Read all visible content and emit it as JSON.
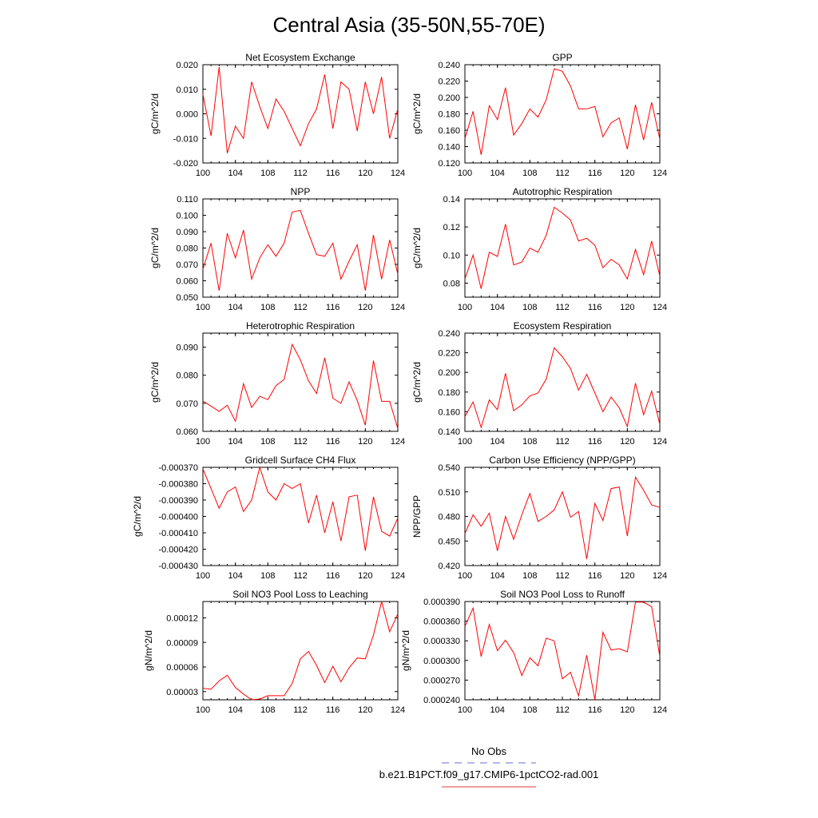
{
  "figure_title": "Central Asia (35-50N,55-70E)",
  "legend": {
    "entries": [
      {
        "label": "No Obs",
        "color": "#6b6bdc",
        "dash": true
      },
      {
        "label": "b.e21.B1PCT.f09_g17.CMIP6-1pctCO2-rad.001",
        "color": "#e03c3c",
        "dash": false
      }
    ]
  },
  "chart_data": [
    {
      "type": "line",
      "title": "Net Ecosystem Exchange",
      "ylabel": "gC/m^2/d",
      "xlim": [
        100,
        124
      ],
      "ylim": [
        -0.02,
        0.02
      ],
      "xticks": [
        "100",
        "104",
        "108",
        "112",
        "116",
        "120",
        "124"
      ],
      "yticks": [
        "-0.020",
        "-0.010",
        "0.000",
        "0.010",
        "0.020"
      ],
      "series": [
        {
          "color": "#ff0000",
          "x": [
            100,
            101,
            102,
            103,
            104,
            105,
            106,
            107,
            108,
            109,
            110,
            111,
            112,
            113,
            114,
            115,
            116,
            117,
            118,
            119,
            120,
            121,
            122,
            123,
            124
          ],
          "values": [
            0.008,
            -0.009,
            0.019,
            -0.016,
            -0.005,
            -0.01,
            0.013,
            0.003,
            -0.006,
            0.006,
            0.001,
            -0.006,
            -0.013,
            -0.004,
            0.002,
            0.016,
            -0.006,
            0.013,
            0.01,
            -0.007,
            0.013,
            0.0,
            0.015,
            -0.01,
            0.002
          ]
        }
      ]
    },
    {
      "type": "line",
      "title": "GPP",
      "ylabel": "gC/m^2/d",
      "xlim": [
        100,
        124
      ],
      "ylim": [
        0.12,
        0.24
      ],
      "xticks": [
        "100",
        "104",
        "108",
        "112",
        "116",
        "120",
        "124"
      ],
      "yticks": [
        "0.120",
        "0.140",
        "0.160",
        "0.180",
        "0.200",
        "0.220",
        "0.240"
      ],
      "series": [
        {
          "color": "#ff0000",
          "x": [
            100,
            101,
            102,
            103,
            104,
            105,
            106,
            107,
            108,
            109,
            110,
            111,
            112,
            113,
            114,
            115,
            116,
            117,
            118,
            119,
            120,
            121,
            122,
            123,
            124
          ],
          "values": [
            0.15,
            0.183,
            0.13,
            0.19,
            0.173,
            0.212,
            0.154,
            0.168,
            0.186,
            0.176,
            0.197,
            0.235,
            0.232,
            0.214,
            0.186,
            0.186,
            0.189,
            0.152,
            0.169,
            0.175,
            0.137,
            0.191,
            0.148,
            0.194,
            0.149
          ]
        }
      ]
    },
    {
      "type": "line",
      "title": "NPP",
      "ylabel": "gC/m^2/d",
      "xlim": [
        100,
        124
      ],
      "ylim": [
        0.05,
        0.11
      ],
      "xticks": [
        "100",
        "104",
        "108",
        "112",
        "116",
        "120",
        "124"
      ],
      "yticks": [
        "0.050",
        "0.060",
        "0.070",
        "0.080",
        "0.090",
        "0.100",
        "0.110"
      ],
      "series": [
        {
          "color": "#ff0000",
          "x": [
            100,
            101,
            102,
            103,
            104,
            105,
            106,
            107,
            108,
            109,
            110,
            111,
            112,
            113,
            114,
            115,
            116,
            117,
            118,
            119,
            120,
            121,
            122,
            123,
            124
          ],
          "values": [
            0.067,
            0.083,
            0.054,
            0.089,
            0.074,
            0.091,
            0.061,
            0.074,
            0.082,
            0.075,
            0.083,
            0.102,
            0.103,
            0.089,
            0.076,
            0.075,
            0.083,
            0.061,
            0.072,
            0.082,
            0.054,
            0.088,
            0.061,
            0.085,
            0.064
          ]
        }
      ]
    },
    {
      "type": "line",
      "title": "Autotrophic Respiration",
      "ylabel": "gC/m^2/d",
      "xlim": [
        100,
        124
      ],
      "ylim": [
        0.07,
        0.14
      ],
      "xticks": [
        "100",
        "104",
        "108",
        "112",
        "116",
        "120",
        "124"
      ],
      "yticks": [
        "0.08",
        "0.10",
        "0.12",
        "0.14"
      ],
      "series": [
        {
          "color": "#ff0000",
          "x": [
            100,
            101,
            102,
            103,
            104,
            105,
            106,
            107,
            108,
            109,
            110,
            111,
            112,
            113,
            114,
            115,
            116,
            117,
            118,
            119,
            120,
            121,
            122,
            123,
            124
          ],
          "values": [
            0.083,
            0.1,
            0.076,
            0.102,
            0.099,
            0.122,
            0.093,
            0.095,
            0.105,
            0.102,
            0.114,
            0.134,
            0.13,
            0.125,
            0.11,
            0.112,
            0.107,
            0.091,
            0.097,
            0.093,
            0.083,
            0.104,
            0.086,
            0.11,
            0.085
          ]
        }
      ]
    },
    {
      "type": "line",
      "title": "Heterotrophic Respiration",
      "ylabel": "gC/m^2/d",
      "xlim": [
        100,
        124
      ],
      "ylim": [
        0.06,
        0.095
      ],
      "xticks": [
        "100",
        "104",
        "108",
        "112",
        "116",
        "120",
        "124"
      ],
      "yticks": [
        "0.060",
        "0.070",
        "0.080",
        "0.090"
      ],
      "series": [
        {
          "color": "#ff0000",
          "x": [
            100,
            101,
            102,
            103,
            104,
            105,
            106,
            107,
            108,
            109,
            110,
            111,
            112,
            113,
            114,
            115,
            116,
            117,
            118,
            119,
            120,
            121,
            122,
            123,
            124
          ],
          "values": [
            0.0708,
            0.069,
            0.0671,
            0.0693,
            0.0636,
            0.077,
            0.0685,
            0.0725,
            0.0713,
            0.0763,
            0.0785,
            0.091,
            0.0855,
            0.078,
            0.0735,
            0.0862,
            0.0718,
            0.07,
            0.0776,
            0.071,
            0.0622,
            0.0852,
            0.0707,
            0.0707,
            0.061
          ]
        }
      ]
    },
    {
      "type": "line",
      "title": "Ecosystem Respiration",
      "ylabel": "gC/m^2/d",
      "xlim": [
        100,
        124
      ],
      "ylim": [
        0.14,
        0.24
      ],
      "xticks": [
        "100",
        "104",
        "108",
        "112",
        "116",
        "120",
        "124"
      ],
      "yticks": [
        "0.140",
        "0.160",
        "0.180",
        "0.200",
        "0.220",
        "0.240"
      ],
      "series": [
        {
          "color": "#ff0000",
          "x": [
            100,
            101,
            102,
            103,
            104,
            105,
            106,
            107,
            108,
            109,
            110,
            111,
            112,
            113,
            114,
            115,
            116,
            117,
            118,
            119,
            120,
            121,
            122,
            123,
            124
          ],
          "values": [
            0.155,
            0.17,
            0.144,
            0.172,
            0.162,
            0.199,
            0.161,
            0.167,
            0.176,
            0.179,
            0.193,
            0.225,
            0.216,
            0.204,
            0.182,
            0.198,
            0.179,
            0.16,
            0.175,
            0.164,
            0.145,
            0.189,
            0.157,
            0.181,
            0.147
          ]
        }
      ]
    },
    {
      "type": "line",
      "title": "Gridcell Surface CH4 Flux",
      "ylabel": "gC/m^2/d",
      "xlim": [
        100,
        124
      ],
      "ylim": [
        -0.00043,
        -0.00037
      ],
      "xticks": [
        "100",
        "104",
        "108",
        "112",
        "116",
        "120",
        "124"
      ],
      "yticks": [
        "-0.000430",
        "-0.000420",
        "-0.000410",
        "-0.000400",
        "-0.000390",
        "-0.000380",
        "-0.000370"
      ],
      "series": [
        {
          "color": "#ff0000",
          "x": [
            100,
            101,
            102,
            103,
            104,
            105,
            106,
            107,
            108,
            109,
            110,
            111,
            112,
            113,
            114,
            115,
            116,
            117,
            118,
            119,
            120,
            121,
            122,
            123,
            124
          ],
          "values": [
            -0.000371,
            -0.000383,
            -0.000395,
            -0.000385,
            -0.000382,
            -0.000397,
            -0.00039,
            -0.00037,
            -0.000385,
            -0.00039,
            -0.00038,
            -0.000383,
            -0.00038,
            -0.000404,
            -0.000387,
            -0.00041,
            -0.000391,
            -0.000415,
            -0.000388,
            -0.000387,
            -0.000421,
            -0.000388,
            -0.000409,
            -0.000412,
            -0.000401
          ]
        }
      ]
    },
    {
      "type": "line",
      "title": "Carbon Use Efficiency (NPP/GPP)",
      "ylabel": "NPP/GPP",
      "xlim": [
        100,
        124
      ],
      "ylim": [
        0.42,
        0.54
      ],
      "xticks": [
        "100",
        "104",
        "108",
        "112",
        "116",
        "120",
        "124"
      ],
      "yticks": [
        "0.420",
        "0.450",
        "0.480",
        "0.510",
        "0.540"
      ],
      "series": [
        {
          "color": "#ff0000",
          "x": [
            100,
            101,
            102,
            103,
            104,
            105,
            106,
            107,
            108,
            109,
            110,
            111,
            112,
            113,
            114,
            115,
            116,
            117,
            118,
            119,
            120,
            121,
            122,
            123,
            124
          ],
          "values": [
            0.459,
            0.482,
            0.468,
            0.484,
            0.438,
            0.48,
            0.452,
            0.482,
            0.508,
            0.474,
            0.48,
            0.488,
            0.51,
            0.479,
            0.486,
            0.428,
            0.496,
            0.475,
            0.514,
            0.516,
            0.456,
            0.528,
            0.512,
            0.494,
            0.491
          ]
        }
      ]
    },
    {
      "type": "line",
      "title": "Soil NO3 Pool Loss to Leaching",
      "ylabel": "gN/m^2/d",
      "xlim": [
        100,
        124
      ],
      "ylim": [
        2e-05,
        0.00014
      ],
      "xticks": [
        "100",
        "104",
        "108",
        "112",
        "116",
        "120",
        "124"
      ],
      "yticks": [
        "0.00003",
        "0.00006",
        "0.00009",
        "0.00012"
      ],
      "series": [
        {
          "color": "#ff0000",
          "x": [
            100,
            101,
            102,
            103,
            104,
            105,
            106,
            107,
            108,
            109,
            110,
            111,
            112,
            113,
            114,
            115,
            116,
            117,
            118,
            119,
            120,
            121,
            122,
            123,
            124
          ],
          "values": [
            3.4e-05,
            3.3e-05,
            4.3e-05,
            5e-05,
            3.5e-05,
            2.7e-05,
            2e-05,
            2.1e-05,
            2.5e-05,
            2.5e-05,
            2.5e-05,
            4e-05,
            7e-05,
            7.9e-05,
            6.2e-05,
            4.1e-05,
            6.1e-05,
            4.2e-05,
            5.9e-05,
            7.1e-05,
            7e-05,
            9.9e-05,
            0.00014,
            0.000103,
            0.000125
          ]
        }
      ]
    },
    {
      "type": "line",
      "title": "Soil NO3 Pool Loss to Runoff",
      "ylabel": "gN/m^2/d",
      "xlim": [
        100,
        124
      ],
      "ylim": [
        0.00024,
        0.00039
      ],
      "xticks": [
        "100",
        "104",
        "108",
        "112",
        "116",
        "120",
        "124"
      ],
      "yticks": [
        "0.000240",
        "0.000270",
        "0.000300",
        "0.000330",
        "0.000360",
        "0.000390"
      ],
      "series": [
        {
          "color": "#ff0000",
          "x": [
            100,
            101,
            102,
            103,
            104,
            105,
            106,
            107,
            108,
            109,
            110,
            111,
            112,
            113,
            114,
            115,
            116,
            117,
            118,
            119,
            120,
            121,
            122,
            123,
            124
          ],
          "values": [
            0.000352,
            0.00038,
            0.000306,
            0.000355,
            0.000315,
            0.000331,
            0.000312,
            0.000277,
            0.000304,
            0.000292,
            0.000334,
            0.00033,
            0.000272,
            0.000282,
            0.000246,
            0.000308,
            0.00024,
            0.000343,
            0.000316,
            0.000318,
            0.000313,
            0.000389,
            0.000389,
            0.000382,
            0.000306
          ]
        }
      ]
    }
  ]
}
